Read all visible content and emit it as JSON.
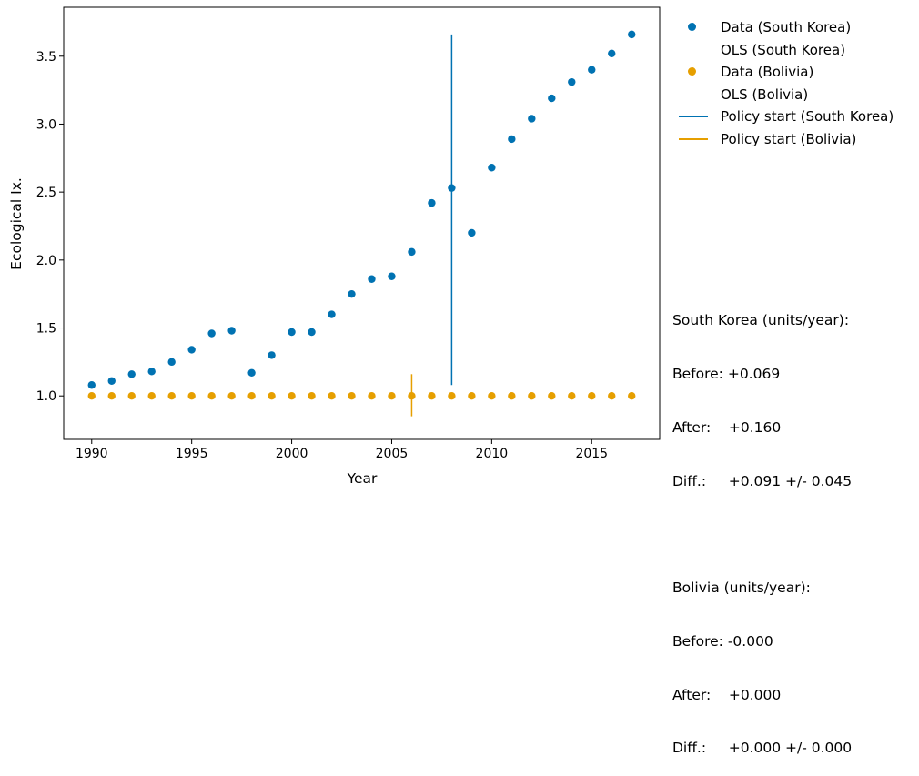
{
  "chart_data": {
    "type": "scatter",
    "xlabel": "Year",
    "ylabel": "Ecological Ix.",
    "xlim": [
      1988.6,
      2018.4
    ],
    "ylim": [
      0.68,
      3.86
    ],
    "xticks": [
      1990,
      1995,
      2000,
      2005,
      2010,
      2015
    ],
    "yticks": [
      1.0,
      1.5,
      2.0,
      2.5,
      3.0,
      3.5
    ],
    "ytick_labels": [
      "1.0",
      "1.5",
      "2.0",
      "2.5",
      "3.0",
      "3.5"
    ],
    "series": [
      {
        "name": "Data (South Korea)",
        "color": "#0072b2",
        "x": [
          1990,
          1991,
          1992,
          1993,
          1994,
          1995,
          1996,
          1997,
          1998,
          1999,
          2000,
          2001,
          2002,
          2003,
          2004,
          2005,
          2006,
          2007,
          2008,
          2009,
          2010,
          2011,
          2012,
          2013,
          2014,
          2015,
          2016,
          2017
        ],
        "y": [
          1.08,
          1.11,
          1.16,
          1.18,
          1.25,
          1.34,
          1.46,
          1.48,
          1.17,
          1.3,
          1.47,
          1.47,
          1.6,
          1.75,
          1.86,
          1.88,
          2.06,
          2.42,
          2.53,
          2.2,
          2.68,
          2.89,
          3.04,
          3.19,
          3.31,
          3.4,
          3.52,
          3.66
        ]
      },
      {
        "name": "Data (Bolivia)",
        "color": "#e69f00",
        "x": [
          1990,
          1991,
          1992,
          1993,
          1994,
          1995,
          1996,
          1997,
          1998,
          1999,
          2000,
          2001,
          2002,
          2003,
          2004,
          2005,
          2006,
          2007,
          2008,
          2009,
          2010,
          2011,
          2012,
          2013,
          2014,
          2015,
          2016,
          2017
        ],
        "y": [
          1.0,
          1.0,
          1.0,
          1.0,
          1.0,
          1.0,
          1.0,
          1.0,
          1.0,
          1.0,
          1.0,
          1.0,
          1.0,
          1.0,
          1.0,
          1.0,
          1.0,
          1.0,
          1.0,
          1.0,
          1.0,
          1.0,
          1.0,
          1.0,
          1.0,
          1.0,
          1.0,
          1.0
        ]
      }
    ],
    "policy_lines": [
      {
        "name": "Policy start (South Korea)",
        "color": "#0072b2",
        "x": 2008,
        "y0": 1.08,
        "y1": 3.66
      },
      {
        "name": "Policy start (Bolivia)",
        "color": "#e69f00",
        "x": 2006,
        "y0": 0.85,
        "y1": 1.16
      }
    ],
    "legend": [
      {
        "label": "Data (South Korea)",
        "kind": "dot",
        "color": "#0072b2"
      },
      {
        "label": "OLS (South Korea)",
        "kind": "none",
        "color": ""
      },
      {
        "label": "Data (Bolivia)",
        "kind": "dot",
        "color": "#e69f00"
      },
      {
        "label": "OLS (Bolivia)",
        "kind": "none",
        "color": ""
      },
      {
        "label": "Policy start (South Korea)",
        "kind": "line",
        "color": "#0072b2"
      },
      {
        "label": "Policy start (Bolivia)",
        "kind": "line",
        "color": "#e69f00"
      }
    ],
    "legend_position": "outside-top-right"
  },
  "stats": {
    "korea": {
      "title": "South Korea (units/year):",
      "before": "Before: +0.069",
      "after": "After:    +0.160",
      "diff": "Diff.:     +0.091 +/- 0.045"
    },
    "bolivia": {
      "title": "Bolivia (units/year):",
      "before": "Before: -0.000",
      "after": "After:    +0.000",
      "diff": "Diff.:     +0.000 +/- 0.000"
    }
  }
}
